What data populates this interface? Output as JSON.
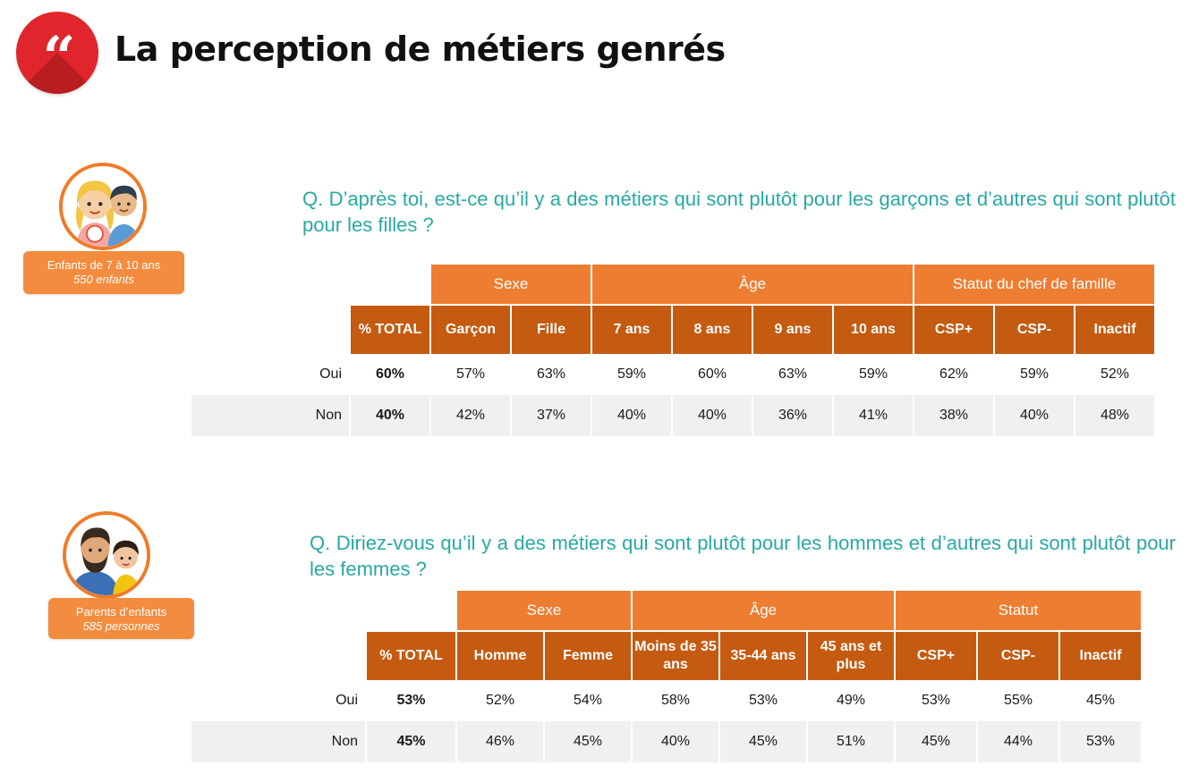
{
  "title": "La perception de métiers genrés",
  "logo": {
    "icon": "quote-icon",
    "glyph": "“",
    "color": "#e0262c"
  },
  "section1": {
    "badge_line1": "Enfants de 7 à 10 ans",
    "badge_line2": "550 enfants",
    "question": "Q. D’après toi, est-ce qu’il y a des métiers qui sont plutôt pour les garçons et d’autres qui sont plutôt pour les filles ?",
    "groups": {
      "g1": "Sexe",
      "g2": "Âge",
      "g3": "Statut du chef de famille"
    },
    "total_header": "% TOTAL",
    "cols": [
      "Garçon",
      "Fille",
      "7 ans",
      "8 ans",
      "9 ans",
      "10 ans",
      "CSP+",
      "CSP-",
      "Inactif"
    ],
    "rows": [
      {
        "label": "Oui",
        "total": "60%",
        "values": [
          "57%",
          "63%",
          "59%",
          "60%",
          "63%",
          "59%",
          "62%",
          "59%",
          "52%"
        ]
      },
      {
        "label": "Non",
        "total": "40%",
        "values": [
          "42%",
          "37%",
          "40%",
          "40%",
          "36%",
          "41%",
          "38%",
          "40%",
          "48%"
        ]
      }
    ]
  },
  "section2": {
    "badge_line1": "Parents d’enfants",
    "badge_line2": "585 personnes",
    "question": "Q. Diriez-vous qu’il y a des métiers qui sont plutôt pour les hommes et d’autres qui sont plutôt pour les femmes ?",
    "groups": {
      "g1": "Sexe",
      "g2": "Âge",
      "g3": "Statut"
    },
    "total_header": "% TOTAL",
    "cols": [
      "Homme",
      "Femme",
      "Moins de 35 ans",
      "35-44 ans",
      "45 ans et plus",
      "CSP+",
      "CSP-",
      "Inactif"
    ],
    "rows": [
      {
        "label": "Oui",
        "total": "53%",
        "values": [
          "52%",
          "54%",
          "58%",
          "53%",
          "49%",
          "53%",
          "55%",
          "45%"
        ]
      },
      {
        "label": "Non",
        "total": "45%",
        "values": [
          "46%",
          "45%",
          "40%",
          "45%",
          "51%",
          "45%",
          "44%",
          "53%"
        ]
      }
    ]
  },
  "colors": {
    "accent": "#ed7d31",
    "dark_accent": "#c55a11",
    "question": "#28a9a3",
    "badge": "#f38c3e"
  }
}
